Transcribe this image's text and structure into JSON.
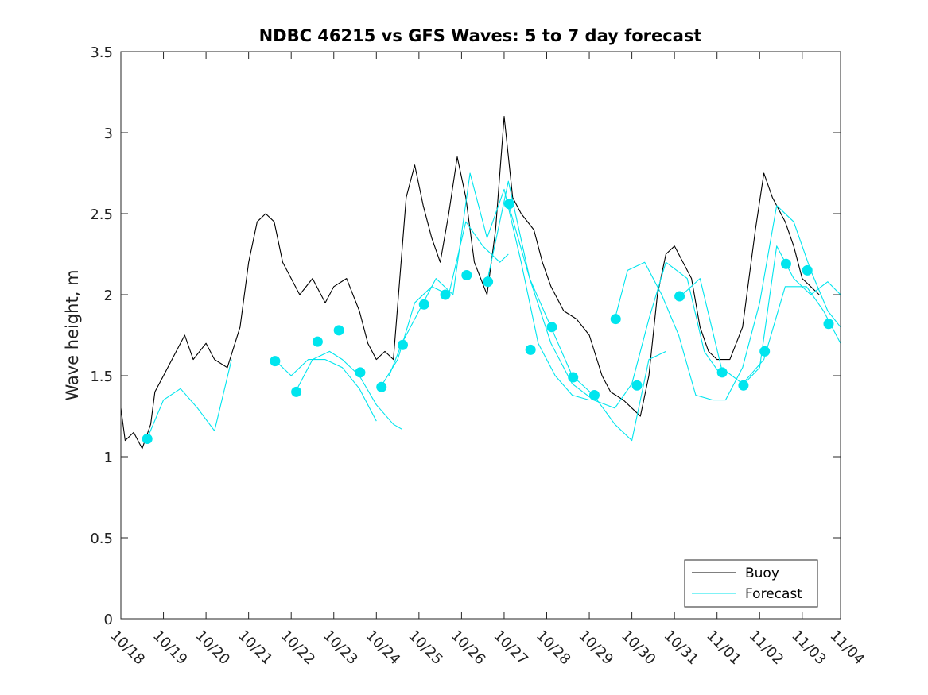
{
  "chart_data": {
    "type": "line",
    "title": "NDBC 46215 vs GFS Waves: 5 to 7 day forecast",
    "xlabel": "",
    "ylabel": "Wave height, m",
    "ylim": [
      0,
      3.5
    ],
    "xlim": [
      0,
      16.9
    ],
    "yticks": [
      0,
      0.5,
      1,
      1.5,
      2,
      2.5,
      3,
      3.5
    ],
    "ytick_labels": [
      "0",
      "0.5",
      "1",
      "1.5",
      "2",
      "2.5",
      "3",
      "3.5"
    ],
    "xtick_labels": [
      "10/18",
      "10/19",
      "10/20",
      "10/21",
      "10/22",
      "10/23",
      "10/24",
      "10/25",
      "10/26",
      "10/27",
      "10/28",
      "10/29",
      "10/30",
      "10/31",
      "11/01",
      "11/02",
      "11/03",
      "11/04"
    ],
    "xtick_positions": [
      0,
      1,
      2,
      3,
      4,
      5,
      6,
      7,
      8,
      9,
      10,
      11,
      12,
      13,
      14,
      15,
      16,
      16.9
    ],
    "legend": {
      "location": "bottom-right",
      "entries": [
        "Buoy",
        "Forecast"
      ]
    },
    "colors": {
      "buoy": "#000000",
      "forecast": "#00e5ee",
      "axis": "#262626"
    },
    "series": [
      {
        "name": "Buoy",
        "x": [
          0,
          0.1,
          0.3,
          0.5,
          0.7,
          0.8,
          1.0,
          1.3,
          1.5,
          1.7,
          2.0,
          2.2,
          2.5,
          2.8,
          3.0,
          3.2,
          3.4,
          3.6,
          3.8,
          4.0,
          4.2,
          4.5,
          4.8,
          5.0,
          5.3,
          5.6,
          5.8,
          6.0,
          6.2,
          6.4,
          6.7,
          6.9,
          7.1,
          7.3,
          7.5,
          7.7,
          7.9,
          8.1,
          8.3,
          8.6,
          8.8,
          9.0,
          9.2,
          9.4,
          9.7,
          9.9,
          10.1,
          10.4,
          10.7,
          11.0,
          11.3,
          11.5,
          11.8,
          12.0,
          12.2,
          12.4,
          12.6,
          12.8,
          13.0,
          13.2,
          13.4,
          13.6,
          13.8,
          14.0,
          14.3,
          14.6,
          14.9,
          15.1,
          15.3,
          15.6,
          15.8,
          16.0,
          16.2,
          16.4
        ],
        "y": [
          1.3,
          1.1,
          1.15,
          1.05,
          1.2,
          1.4,
          1.5,
          1.65,
          1.75,
          1.6,
          1.7,
          1.6,
          1.55,
          1.8,
          2.2,
          2.45,
          2.5,
          2.45,
          2.2,
          2.1,
          2.0,
          2.1,
          1.95,
          2.05,
          2.1,
          1.9,
          1.7,
          1.6,
          1.65,
          1.6,
          2.6,
          2.8,
          2.55,
          2.35,
          2.2,
          2.5,
          2.85,
          2.6,
          2.2,
          2.0,
          2.4,
          3.1,
          2.6,
          2.5,
          2.4,
          2.2,
          2.05,
          1.9,
          1.85,
          1.75,
          1.5,
          1.4,
          1.35,
          1.3,
          1.25,
          1.5,
          2.0,
          2.25,
          2.3,
          2.2,
          2.1,
          1.8,
          1.65,
          1.6,
          1.6,
          1.8,
          2.4,
          2.75,
          2.6,
          2.45,
          2.3,
          2.1,
          2.05,
          2.0
        ]
      },
      {
        "name": "Forecast",
        "x": [
          0.6,
          1.0,
          1.4,
          1.8,
          2.2,
          2.6
        ],
        "y": [
          1.1,
          1.35,
          1.42,
          1.3,
          1.16,
          1.6
        ]
      },
      {
        "name": "Forecast",
        "x": [
          3.6,
          4.0,
          4.4,
          4.8,
          5.2,
          5.6,
          6.0
        ],
        "y": [
          1.6,
          1.5,
          1.6,
          1.6,
          1.55,
          1.42,
          1.22
        ]
      },
      {
        "name": "Forecast",
        "x": [
          4.1,
          4.5,
          4.9,
          5.2,
          5.6,
          6.0,
          6.4,
          6.6
        ],
        "y": [
          1.4,
          1.6,
          1.65,
          1.6,
          1.5,
          1.32,
          1.2,
          1.17
        ]
      },
      {
        "name": "Forecast",
        "x": [
          6.1,
          6.5,
          6.9,
          7.3,
          7.7,
          8.1,
          8.5,
          8.9,
          9.1
        ],
        "y": [
          1.43,
          1.6,
          1.95,
          2.05,
          2.0,
          2.45,
          2.3,
          2.2,
          2.25
        ]
      },
      {
        "name": "Forecast",
        "x": [
          6.3,
          6.6,
          7.0,
          7.4,
          7.8,
          8.2,
          8.6,
          9.0,
          9.4,
          9.8,
          10.2,
          10.6,
          11.0
        ],
        "y": [
          1.5,
          1.7,
          1.9,
          2.1,
          2.0,
          2.75,
          2.35,
          2.65,
          2.2,
          1.7,
          1.5,
          1.38,
          1.35
        ]
      },
      {
        "name": "Forecast",
        "x": [
          8.6,
          9.1,
          9.6,
          10.1,
          10.6,
          11.1,
          11.6,
          12.0,
          12.4,
          12.8
        ],
        "y": [
          2.08,
          2.7,
          2.1,
          1.8,
          1.5,
          1.38,
          1.2,
          1.1,
          1.6,
          1.65
        ]
      },
      {
        "name": "Forecast",
        "x": [
          9.1,
          9.6,
          10.1,
          10.6,
          11.1,
          11.6,
          12.0,
          12.4,
          12.8,
          13.3,
          13.7,
          14.1
        ],
        "y": [
          2.56,
          2.1,
          1.7,
          1.45,
          1.35,
          1.3,
          1.45,
          1.85,
          2.2,
          2.1,
          1.65,
          1.5
        ]
      },
      {
        "name": "Forecast",
        "x": [
          11.6,
          11.9,
          12.3,
          12.7,
          13.1,
          13.5,
          13.9,
          14.2,
          14.6,
          15.0,
          15.4,
          15.8,
          16.2,
          16.6,
          16.9
        ],
        "y": [
          1.85,
          2.15,
          2.2,
          2.0,
          1.75,
          1.38,
          1.35,
          1.35,
          1.55,
          1.95,
          2.55,
          2.45,
          2.15,
          1.9,
          1.8
        ]
      },
      {
        "name": "Forecast",
        "x": [
          13.1,
          13.6,
          14.1,
          14.6,
          15.1,
          15.6,
          16.1,
          16.5,
          16.9
        ],
        "y": [
          1.98,
          2.1,
          1.55,
          1.45,
          1.6,
          2.05,
          2.05,
          1.9,
          1.7
        ]
      },
      {
        "name": "Forecast",
        "x": [
          14.6,
          15.0,
          15.4,
          15.8,
          16.2,
          16.6,
          16.9
        ],
        "y": [
          1.44,
          1.55,
          2.3,
          2.1,
          2.0,
          2.08,
          2.0
        ]
      }
    ],
    "forecast_markers": {
      "x": [
        0.62,
        3.62,
        4.12,
        4.62,
        5.12,
        5.62,
        6.12,
        6.62,
        7.12,
        7.62,
        8.12,
        8.62,
        9.12,
        9.62,
        10.12,
        10.62,
        11.12,
        11.62,
        12.12,
        13.12,
        14.12,
        14.62,
        15.12,
        15.62,
        16.12,
        16.62
      ],
      "y": [
        1.11,
        1.59,
        1.4,
        1.71,
        1.78,
        1.52,
        1.43,
        1.69,
        1.94,
        2.0,
        2.12,
        2.08,
        2.56,
        1.66,
        1.8,
        1.49,
        1.38,
        1.85,
        1.44,
        1.99,
        1.52,
        1.44,
        1.65,
        2.19,
        2.15,
        1.82
      ]
    }
  }
}
